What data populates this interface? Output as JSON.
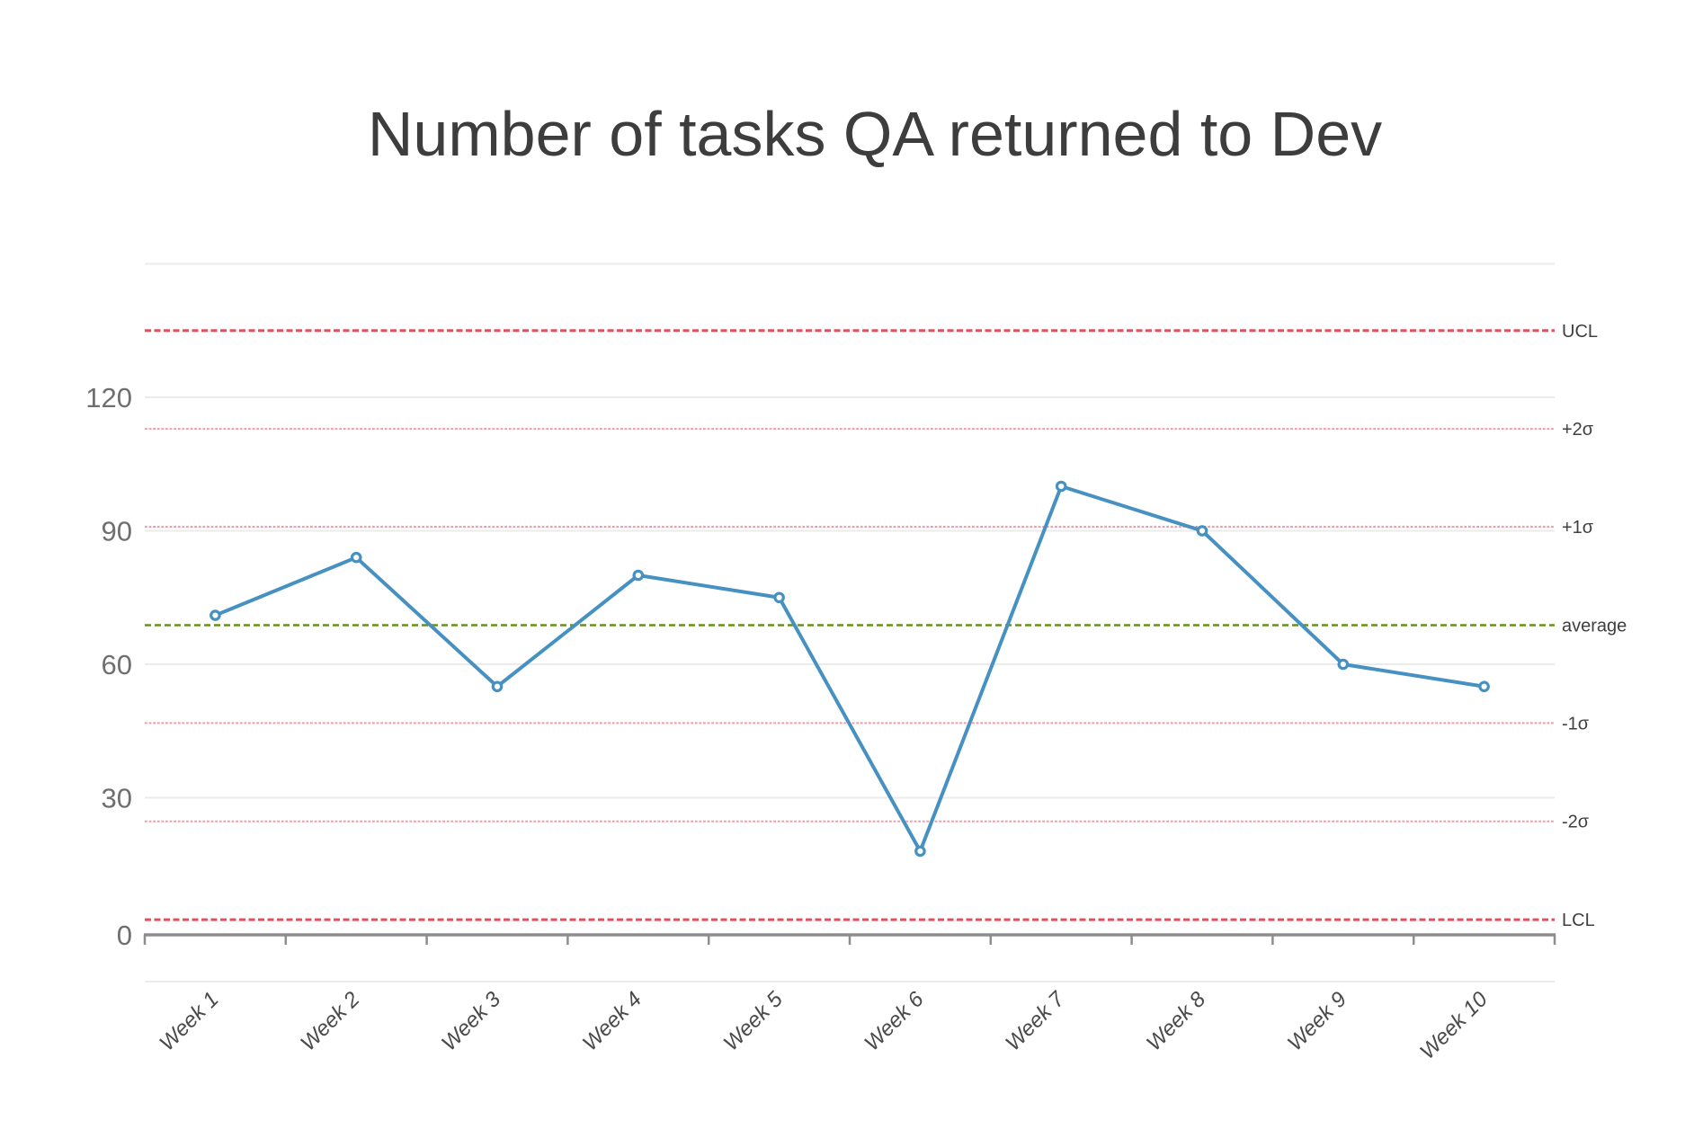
{
  "chart_data": {
    "type": "line",
    "title": "Number of tasks QA returned to Dev",
    "categories": [
      "Week 1",
      "Week 2",
      "Week 3",
      "Week 4",
      "Week 5",
      "Week 6",
      "Week 7",
      "Week 8",
      "Week 9",
      "Week 10"
    ],
    "series": [
      {
        "values": [
          71,
          84,
          55,
          80,
          75,
          18,
          100,
          90,
          60,
          55
        ],
        "color": "#4691c1",
        "marker_fill": "#ffffff"
      }
    ],
    "control_lines": [
      {
        "label": "UCL",
        "value": 135.0,
        "kind": "limit",
        "color": "#e0515f"
      },
      {
        "label": "+2σ",
        "value": 112.9,
        "kind": "sigma",
        "color": "#f49ba5"
      },
      {
        "label": "+1σ",
        "value": 90.9,
        "kind": "sigma",
        "color": "#f49ba5"
      },
      {
        "label": "average",
        "value": 68.8,
        "kind": "mean",
        "color": "#67901f"
      },
      {
        "label": "-1σ",
        "value": 46.8,
        "kind": "sigma",
        "color": "#f49ba5"
      },
      {
        "label": "-2σ",
        "value": 24.7,
        "kind": "sigma",
        "color": "#f49ba5"
      },
      {
        "label": "LCL",
        "value": 2.6,
        "kind": "limit",
        "color": "#e0515f"
      }
    ],
    "y_axis": {
      "tick_labels": [
        "0",
        "30",
        "60",
        "90",
        "120"
      ],
      "tick_values": [
        0,
        30,
        60,
        90,
        120
      ],
      "ylim": [
        0,
        150
      ],
      "grid_step": 30
    },
    "xlabel": "",
    "ylabel": "",
    "legend": "none",
    "grid": true,
    "background": "#ffffff"
  }
}
